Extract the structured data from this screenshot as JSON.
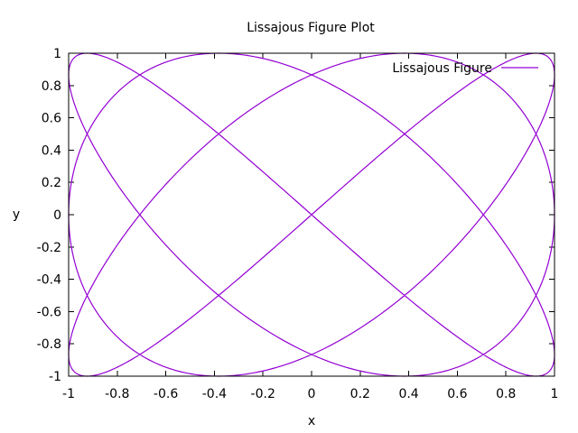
{
  "chart_data": {
    "type": "line",
    "title": "Lissajous Figure Plot",
    "xlabel": "x",
    "ylabel": "y",
    "xlim": [
      -1,
      1
    ],
    "ylim": [
      -1,
      1
    ],
    "grid": false,
    "legend_position": "top-right",
    "x_ticks": [
      "-1",
      "-0.8",
      "-0.6",
      "-0.4",
      "-0.2",
      "0",
      "0.2",
      "0.4",
      "0.6",
      "0.8",
      "1"
    ],
    "y_ticks": [
      "-1",
      "-0.8",
      "-0.6",
      "-0.4",
      "-0.2",
      "0",
      "0.2",
      "0.4",
      "0.6",
      "0.8",
      "1"
    ],
    "series": [
      {
        "name": "Lissajous Figure",
        "color": "#9400d3",
        "parametric": {
          "x": "sin(3t + pi/2)",
          "y": "sin(4t)",
          "t_range": [
            0,
            6.2832
          ]
        },
        "points": [
          [
            1,
            0
          ],
          [
            0.7071,
            0.5
          ],
          [
            0,
            0.866
          ],
          [
            -0.7071,
            0.5
          ],
          [
            -1,
            0
          ],
          [
            -0.7071,
            -0.5
          ],
          [
            0,
            -0.866
          ],
          [
            0.7071,
            -0.5
          ],
          [
            0.7071,
            0.5
          ],
          [
            -0.7071,
            -0.5
          ],
          [
            -0.7071,
            0.5
          ],
          [
            0.7071,
            -0.5
          ],
          [
            0,
            0
          ]
        ]
      }
    ]
  }
}
